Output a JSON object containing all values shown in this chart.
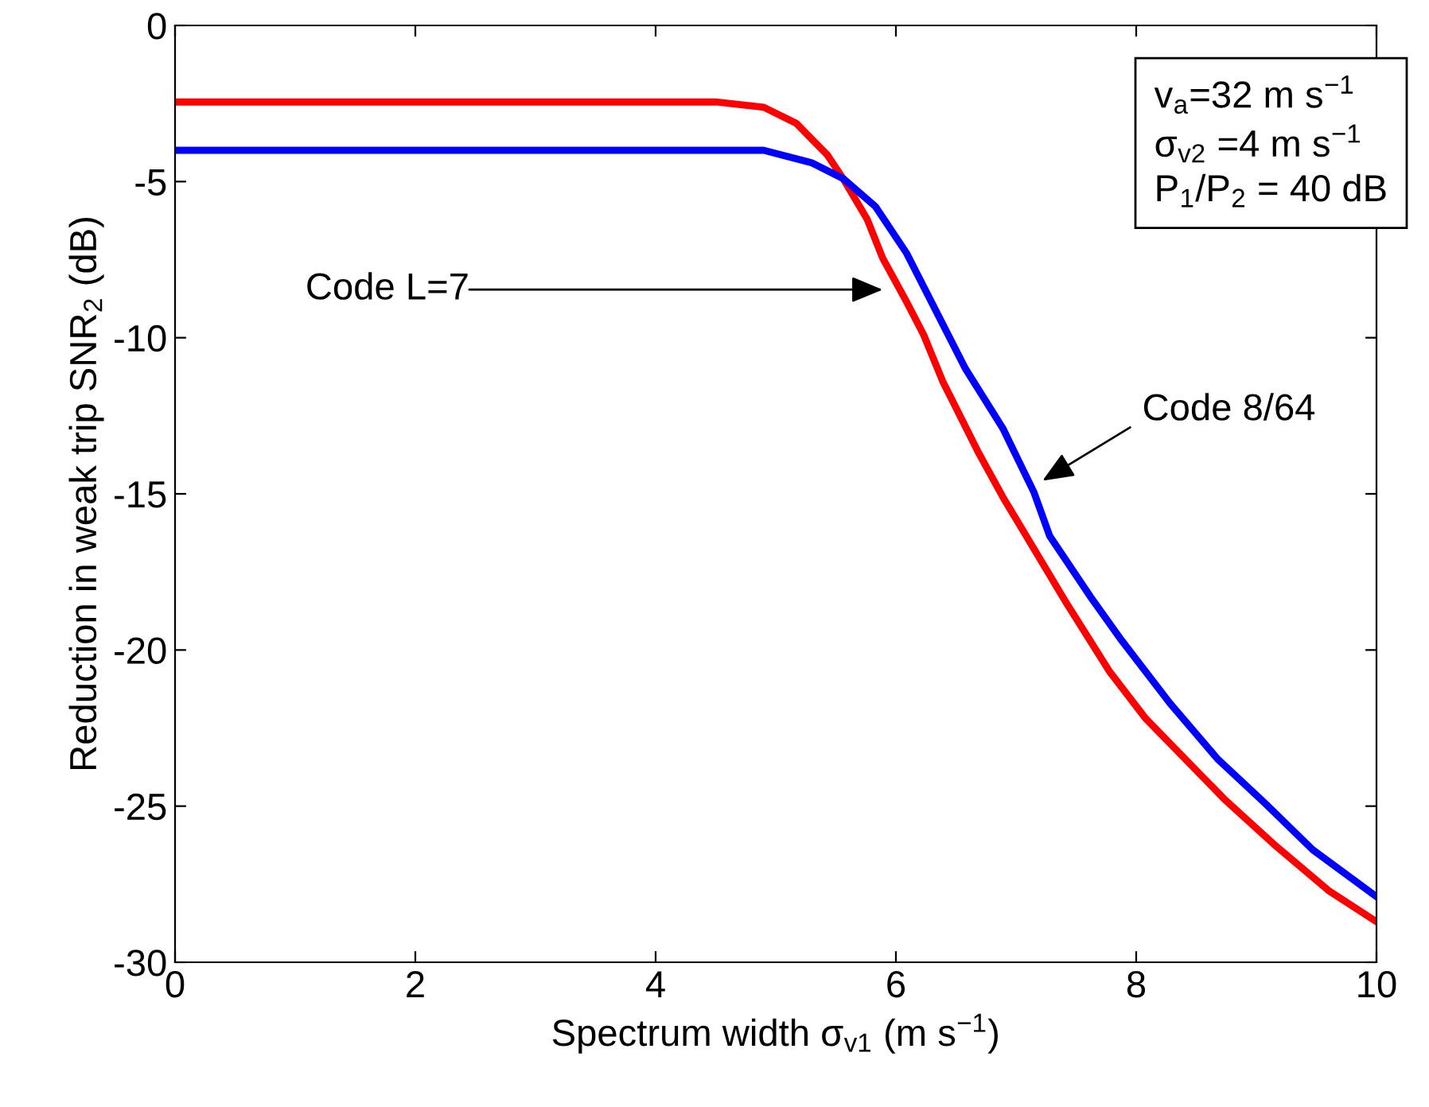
{
  "chart_data": {
    "type": "line",
    "xlabel": "Spectrum width σ$_{v1}$ (m s$^{−1}$)",
    "ylabel": "Reduction in weak trip SNR$_{2}$ (dB)",
    "xlim": [
      0,
      10
    ],
    "ylim": [
      -30,
      0
    ],
    "xticks": [
      0,
      2,
      4,
      6,
      8,
      10
    ],
    "yticks": [
      -30,
      -25,
      -20,
      -15,
      -10,
      -5,
      0
    ],
    "grid": false,
    "legend": false,
    "marker": "none",
    "line_style": "solid",
    "series": [
      {
        "color": "#ff0000",
        "x": [
          0,
          4.5,
          4.9,
          5.17,
          5.43,
          5.56,
          5.76,
          5.89,
          6.09,
          6.23,
          6.39,
          6.69,
          6.89,
          7.42,
          7.78,
          8.08,
          8.41,
          8.74,
          9.14,
          9.6,
          10
        ],
        "values": [
          -2.45,
          -2.45,
          -2.62,
          -3.13,
          -4.15,
          -4.9,
          -6.2,
          -7.45,
          -8.86,
          -9.9,
          -11.4,
          -13.7,
          -15.1,
          -18.5,
          -20.7,
          -22.2,
          -23.5,
          -24.8,
          -26.2,
          -27.7,
          -28.7
        ]
      },
      {
        "color": "#0000ff",
        "x": [
          0,
          4.9,
          5.3,
          5.56,
          5.83,
          6.09,
          6.58,
          6.89,
          7.15,
          7.28,
          7.62,
          7.88,
          8.28,
          8.68,
          9.07,
          9.47,
          10
        ],
        "values": [
          -4.0,
          -4.0,
          -4.4,
          -4.9,
          -5.8,
          -7.3,
          -11.0,
          -12.9,
          -14.96,
          -16.35,
          -18.3,
          -19.7,
          -21.7,
          -23.5,
          -24.9,
          -26.4,
          -27.9
        ]
      }
    ],
    "annotations": [
      "v$_{a}$=32 m s$^{−1}$",
      "σ$_{v2}$ =4 m s$^{−1}$",
      "P$_{1}$/P$_{2}$ = 40 dB",
      "Code L=7",
      "Code 8/64"
    ]
  }
}
